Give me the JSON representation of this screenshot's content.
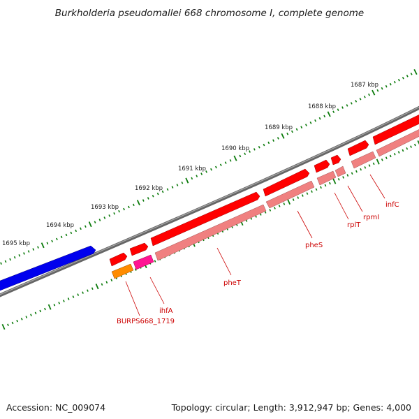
{
  "title": "Burkholderia pseudomallei 668 chromosome I, complete genome",
  "footer": {
    "accession": "Accession: NC_009074",
    "summary": "Topology: circular; Length: 3,912,947 bp; Genes: 4,000"
  },
  "colors": {
    "backbone": "#777777",
    "tick_dots": "#0a7a0a",
    "cds": "#ff0000",
    "rna": "#f08080",
    "blue_feature": "#0000ee",
    "orange_feature": "#ff8c00",
    "magenta_feature": "#ff1493",
    "label": "#cc0000"
  },
  "scale_labels": [
    "1687 kbp",
    "1688 kbp",
    "1689 kbp",
    "1690 kbp",
    "1691 kbp",
    "1692 kbp",
    "1693 kbp",
    "1694 kbp",
    "1695 kbp"
  ],
  "gene_labels": [
    "infC",
    "rpmI",
    "rplT",
    "pheS",
    "pheT",
    "ihfA",
    "BURPS668_1719"
  ]
}
